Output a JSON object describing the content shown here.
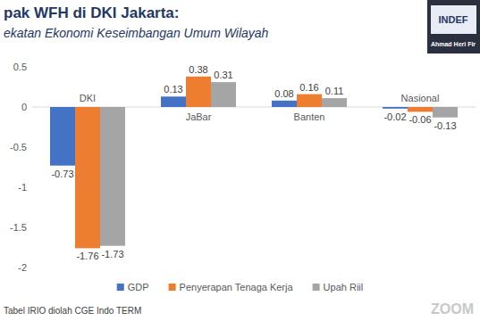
{
  "chart_data": {
    "type": "bar",
    "title": "pak WFH di DKI Jakarta:",
    "subtitle": "ekatan Ekonomi Keseimbangan Umum Wilayah",
    "categories": [
      "DKI",
      "JaBar",
      "Banten",
      "Nasional"
    ],
    "series": [
      {
        "name": "GDP",
        "color": "#4472c4",
        "values": [
          -0.73,
          0.13,
          0.08,
          -0.02
        ]
      },
      {
        "name": "Penyerapan Tenaga Kerja",
        "color": "#ed7d31",
        "values": [
          -1.76,
          0.38,
          0.16,
          -0.06
        ]
      },
      {
        "name": "Upah Riil",
        "color": "#a5a5a5",
        "values": [
          -1.73,
          0.31,
          0.11,
          -0.13
        ]
      }
    ],
    "ylim": [
      -2,
      0.5
    ],
    "yticks": [
      -2,
      -1.5,
      -1,
      -0.5,
      0,
      0.5
    ],
    "grid": false,
    "data_labels": true,
    "legend": "bottom",
    "source": "Tabel IRIO diolah CGE Indo TERM",
    "annotations": [
      "INDEF",
      "Ahmad Heri Fir",
      "ZOOM"
    ]
  }
}
